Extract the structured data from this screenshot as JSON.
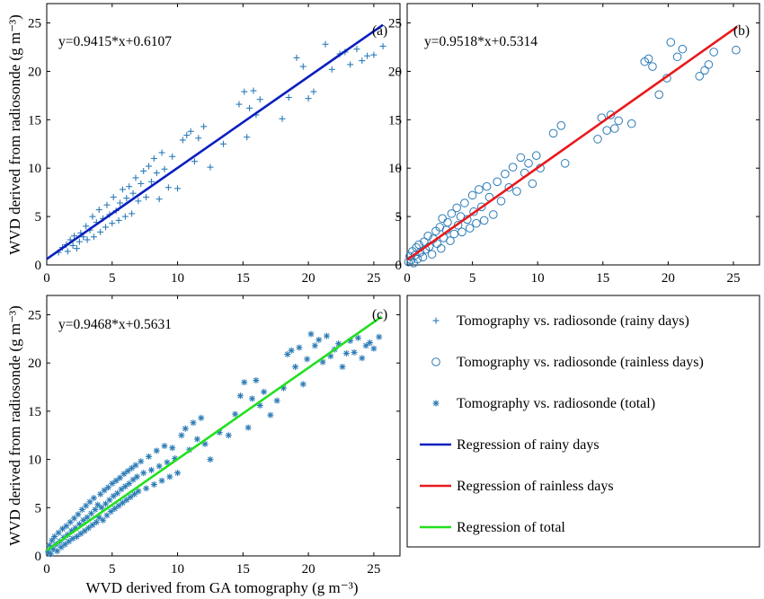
{
  "marker_color": "#2c7bb6",
  "chart_data": [
    {
      "type": "scatter",
      "panel_label": "(a)",
      "equation": "y=0.9415*x+0.6107",
      "ylabel": "WVD derived from radiosonde (g m⁻³)",
      "xlabel": "",
      "xlim": [
        0,
        27
      ],
      "ylim": [
        0,
        27
      ],
      "xticks": [
        0,
        5,
        10,
        15,
        20,
        25
      ],
      "yticks": [
        0,
        5,
        10,
        15,
        20,
        25
      ],
      "marker": "plus",
      "regression": {
        "slope": 0.9415,
        "intercept": 0.6107,
        "x_range": [
          0,
          25.7
        ],
        "color": "#0b1fbf"
      },
      "points": [
        [
          0.9,
          1.3
        ],
        [
          1.2,
          1.8
        ],
        [
          1.5,
          2.1
        ],
        [
          1.6,
          1.4
        ],
        [
          1.8,
          2.6
        ],
        [
          2.0,
          2.0
        ],
        [
          2.1,
          3.0
        ],
        [
          2.3,
          1.7
        ],
        [
          2.5,
          2.4
        ],
        [
          2.6,
          3.3
        ],
        [
          2.8,
          2.9
        ],
        [
          3.0,
          4.0
        ],
        [
          3.1,
          2.6
        ],
        [
          3.3,
          3.6
        ],
        [
          3.5,
          5.0
        ],
        [
          3.6,
          2.9
        ],
        [
          3.8,
          4.4
        ],
        [
          4.0,
          5.7
        ],
        [
          4.1,
          3.4
        ],
        [
          4.3,
          4.8
        ],
        [
          4.5,
          3.9
        ],
        [
          4.6,
          6.2
        ],
        [
          4.8,
          5.2
        ],
        [
          5.0,
          4.3
        ],
        [
          5.1,
          7.0
        ],
        [
          5.3,
          5.6
        ],
        [
          5.5,
          4.6
        ],
        [
          5.6,
          6.4
        ],
        [
          5.8,
          7.8
        ],
        [
          6.0,
          5.0
        ],
        [
          6.1,
          6.9
        ],
        [
          6.3,
          8.1
        ],
        [
          6.5,
          5.3
        ],
        [
          6.6,
          7.4
        ],
        [
          6.8,
          9.0
        ],
        [
          7.0,
          6.6
        ],
        [
          7.2,
          8.4
        ],
        [
          7.4,
          9.7
        ],
        [
          7.6,
          7.0
        ],
        [
          7.8,
          10.2
        ],
        [
          8.0,
          8.6
        ],
        [
          8.2,
          11.0
        ],
        [
          8.4,
          9.5
        ],
        [
          8.6,
          6.8
        ],
        [
          8.8,
          11.6
        ],
        [
          9.0,
          9.9
        ],
        [
          9.3,
          8.0
        ],
        [
          9.6,
          11.2
        ],
        [
          10.0,
          7.9
        ],
        [
          10.4,
          12.9
        ],
        [
          10.7,
          13.4
        ],
        [
          11.0,
          13.8
        ],
        [
          11.3,
          10.7
        ],
        [
          11.6,
          13.1
        ],
        [
          12.0,
          14.3
        ],
        [
          12.5,
          10.1
        ],
        [
          13.5,
          12.5
        ],
        [
          14.7,
          16.6
        ],
        [
          15.1,
          17.9
        ],
        [
          15.3,
          13.2
        ],
        [
          15.5,
          16.2
        ],
        [
          15.8,
          18.0
        ],
        [
          16.0,
          15.5
        ],
        [
          16.3,
          17.1
        ],
        [
          18.0,
          15.1
        ],
        [
          18.5,
          17.3
        ],
        [
          19.1,
          21.4
        ],
        [
          19.6,
          20.5
        ],
        [
          20.0,
          17.2
        ],
        [
          20.4,
          17.9
        ],
        [
          21.3,
          22.8
        ],
        [
          21.8,
          20.2
        ],
        [
          22.4,
          21.8
        ],
        [
          22.8,
          22.0
        ],
        [
          23.2,
          20.7
        ],
        [
          23.7,
          22.3
        ],
        [
          24.1,
          21.1
        ],
        [
          24.5,
          21.6
        ],
        [
          25.0,
          21.7
        ],
        [
          25.7,
          22.6
        ]
      ]
    },
    {
      "type": "scatter",
      "panel_label": "(b)",
      "equation": "y=0.9518*x+0.5314",
      "xlabel": "",
      "ylabel": "",
      "xlim": [
        0,
        27
      ],
      "ylim": [
        0,
        27
      ],
      "xticks": [
        0,
        5,
        10,
        15,
        20,
        25
      ],
      "yticks": [
        0,
        5,
        10,
        15,
        20,
        25
      ],
      "marker": "circle",
      "regression": {
        "slope": 0.9518,
        "intercept": 0.5314,
        "x_range": [
          0,
          25.3
        ],
        "color": "#e8191c"
      },
      "points": [
        [
          0.1,
          0.3
        ],
        [
          0.2,
          0.9
        ],
        [
          0.3,
          0.5
        ],
        [
          0.4,
          1.4
        ],
        [
          0.5,
          0.2
        ],
        [
          0.6,
          1.0
        ],
        [
          0.7,
          1.8
        ],
        [
          0.8,
          0.6
        ],
        [
          0.9,
          2.1
        ],
        [
          1.0,
          1.3
        ],
        [
          1.2,
          0.8
        ],
        [
          1.3,
          2.4
        ],
        [
          1.4,
          1.6
        ],
        [
          1.6,
          3.0
        ],
        [
          1.7,
          1.9
        ],
        [
          1.9,
          1.1
        ],
        [
          2.0,
          2.7
        ],
        [
          2.2,
          3.5
        ],
        [
          2.3,
          2.2
        ],
        [
          2.5,
          3.9
        ],
        [
          2.6,
          1.7
        ],
        [
          2.7,
          4.8
        ],
        [
          2.8,
          2.8
        ],
        [
          3.0,
          3.6
        ],
        [
          3.1,
          4.4
        ],
        [
          3.3,
          2.5
        ],
        [
          3.4,
          5.3
        ],
        [
          3.6,
          3.2
        ],
        [
          3.8,
          5.9
        ],
        [
          3.9,
          4.1
        ],
        [
          4.1,
          5.0
        ],
        [
          4.2,
          3.4
        ],
        [
          4.4,
          6.4
        ],
        [
          4.6,
          4.7
        ],
        [
          4.8,
          3.8
        ],
        [
          5.0,
          7.2
        ],
        [
          5.1,
          5.5
        ],
        [
          5.3,
          4.3
        ],
        [
          5.5,
          7.8
        ],
        [
          5.7,
          6.0
        ],
        [
          5.9,
          4.6
        ],
        [
          6.1,
          8.1
        ],
        [
          6.3,
          7.0
        ],
        [
          6.6,
          5.2
        ],
        [
          6.9,
          8.6
        ],
        [
          7.2,
          6.6
        ],
        [
          7.5,
          9.4
        ],
        [
          7.8,
          8.0
        ],
        [
          8.1,
          10.1
        ],
        [
          8.4,
          7.6
        ],
        [
          8.7,
          11.1
        ],
        [
          9.0,
          9.5
        ],
        [
          9.3,
          10.5
        ],
        [
          9.6,
          8.4
        ],
        [
          9.9,
          11.3
        ],
        [
          10.2,
          10.0
        ],
        [
          11.2,
          13.6
        ],
        [
          11.8,
          14.4
        ],
        [
          12.1,
          10.5
        ],
        [
          14.6,
          13.0
        ],
        [
          14.9,
          15.2
        ],
        [
          15.3,
          13.9
        ],
        [
          15.6,
          15.5
        ],
        [
          15.9,
          14.1
        ],
        [
          16.2,
          14.9
        ],
        [
          17.2,
          14.6
        ],
        [
          18.2,
          21.0
        ],
        [
          18.5,
          21.3
        ],
        [
          18.8,
          20.5
        ],
        [
          19.3,
          17.6
        ],
        [
          19.9,
          19.3
        ],
        [
          20.2,
          23.0
        ],
        [
          20.7,
          21.5
        ],
        [
          21.1,
          22.3
        ],
        [
          22.4,
          19.5
        ],
        [
          22.8,
          20.1
        ],
        [
          23.1,
          20.7
        ],
        [
          23.5,
          22.0
        ],
        [
          25.2,
          22.2
        ]
      ]
    },
    {
      "type": "scatter",
      "panel_label": "(c)",
      "equation": "y=0.9468*x+0.5631",
      "ylabel": "WVD derived from radiosonde (g m⁻³)",
      "xlabel": "WVD derived from GA tomography (g m⁻³)",
      "xlim": [
        0,
        27
      ],
      "ylim": [
        0,
        27
      ],
      "xticks": [
        0,
        5,
        10,
        15,
        20,
        25
      ],
      "yticks": [
        0,
        5,
        10,
        15,
        20,
        25
      ],
      "marker": "asterisk",
      "regression": {
        "slope": 0.9468,
        "intercept": 0.5631,
        "x_range": [
          0,
          25.6
        ],
        "color": "#22e01f"
      },
      "points": [
        [
          0.1,
          0.4
        ],
        [
          0.2,
          1.1
        ],
        [
          0.3,
          0.2
        ],
        [
          0.4,
          1.6
        ],
        [
          0.5,
          0.7
        ],
        [
          0.6,
          2.0
        ],
        [
          0.7,
          1.2
        ],
        [
          0.8,
          0.5
        ],
        [
          0.9,
          2.4
        ],
        [
          1.0,
          1.5
        ],
        [
          1.1,
          0.9
        ],
        [
          1.2,
          2.8
        ],
        [
          1.3,
          1.9
        ],
        [
          1.4,
          1.2
        ],
        [
          1.5,
          3.1
        ],
        [
          1.6,
          2.2
        ],
        [
          1.7,
          1.5
        ],
        [
          1.8,
          3.5
        ],
        [
          1.9,
          2.6
        ],
        [
          2.0,
          1.8
        ],
        [
          2.1,
          3.9
        ],
        [
          2.2,
          2.9
        ],
        [
          2.3,
          2.0
        ],
        [
          2.4,
          4.3
        ],
        [
          2.5,
          3.3
        ],
        [
          2.6,
          2.3
        ],
        [
          2.7,
          4.8
        ],
        [
          2.8,
          3.7
        ],
        [
          2.9,
          2.6
        ],
        [
          3.0,
          5.2
        ],
        [
          3.1,
          4.0
        ],
        [
          3.2,
          2.9
        ],
        [
          3.3,
          5.6
        ],
        [
          3.4,
          4.4
        ],
        [
          3.5,
          3.2
        ],
        [
          3.6,
          6.0
        ],
        [
          3.7,
          4.8
        ],
        [
          3.8,
          3.5
        ],
        [
          3.9,
          5.3
        ],
        [
          4.0,
          4.0
        ],
        [
          4.1,
          6.4
        ],
        [
          4.2,
          5.0
        ],
        [
          4.3,
          3.7
        ],
        [
          4.4,
          6.8
        ],
        [
          4.5,
          5.4
        ],
        [
          4.6,
          4.2
        ],
        [
          4.7,
          7.1
        ],
        [
          4.8,
          5.8
        ],
        [
          4.9,
          4.6
        ],
        [
          5.0,
          7.5
        ],
        [
          5.1,
          6.2
        ],
        [
          5.2,
          4.9
        ],
        [
          5.3,
          7.8
        ],
        [
          5.4,
          6.5
        ],
        [
          5.5,
          5.2
        ],
        [
          5.6,
          8.1
        ],
        [
          5.7,
          6.9
        ],
        [
          5.8,
          5.5
        ],
        [
          5.9,
          8.5
        ],
        [
          6.0,
          7.2
        ],
        [
          6.1,
          5.8
        ],
        [
          6.2,
          8.8
        ],
        [
          6.3,
          7.5
        ],
        [
          6.4,
          6.1
        ],
        [
          6.5,
          9.1
        ],
        [
          6.6,
          7.9
        ],
        [
          6.7,
          6.4
        ],
        [
          6.8,
          9.4
        ],
        [
          6.9,
          8.2
        ],
        [
          7.0,
          6.7
        ],
        [
          7.2,
          9.8
        ],
        [
          7.4,
          8.6
        ],
        [
          7.6,
          7.0
        ],
        [
          7.8,
          10.3
        ],
        [
          8.0,
          8.9
        ],
        [
          8.2,
          7.4
        ],
        [
          8.4,
          10.9
        ],
        [
          8.6,
          9.3
        ],
        [
          8.8,
          7.8
        ],
        [
          9.0,
          11.4
        ],
        [
          9.2,
          9.7
        ],
        [
          9.4,
          8.2
        ],
        [
          9.6,
          11.2
        ],
        [
          9.8,
          10.1
        ],
        [
          10.0,
          8.6
        ],
        [
          10.3,
          12.5
        ],
        [
          10.6,
          13.2
        ],
        [
          10.9,
          11.0
        ],
        [
          11.2,
          13.8
        ],
        [
          11.5,
          12.1
        ],
        [
          11.8,
          14.3
        ],
        [
          12.1,
          11.6
        ],
        [
          12.5,
          10.0
        ],
        [
          13.2,
          12.8
        ],
        [
          13.9,
          12.5
        ],
        [
          14.4,
          14.7
        ],
        [
          14.8,
          16.6
        ],
        [
          15.1,
          18.0
        ],
        [
          15.4,
          13.3
        ],
        [
          15.7,
          16.3
        ],
        [
          16.0,
          18.2
        ],
        [
          16.3,
          15.6
        ],
        [
          16.6,
          17.0
        ],
        [
          17.1,
          14.6
        ],
        [
          17.6,
          16.1
        ],
        [
          18.1,
          17.4
        ],
        [
          18.4,
          20.9
        ],
        [
          18.7,
          21.3
        ],
        [
          19.0,
          19.6
        ],
        [
          19.3,
          21.6
        ],
        [
          19.6,
          17.8
        ],
        [
          19.9,
          20.4
        ],
        [
          20.2,
          23.0
        ],
        [
          20.5,
          21.8
        ],
        [
          20.8,
          22.4
        ],
        [
          21.1,
          20.1
        ],
        [
          21.4,
          22.8
        ],
        [
          21.7,
          20.7
        ],
        [
          22.0,
          21.4
        ],
        [
          22.3,
          22.0
        ],
        [
          22.6,
          19.6
        ],
        [
          22.9,
          21.0
        ],
        [
          23.2,
          22.3
        ],
        [
          23.5,
          21.1
        ],
        [
          23.8,
          22.6
        ],
        [
          24.1,
          20.5
        ],
        [
          24.4,
          21.8
        ],
        [
          24.7,
          22.1
        ],
        [
          25.0,
          21.5
        ],
        [
          25.4,
          22.7
        ]
      ]
    }
  ],
  "legend": {
    "items": [
      {
        "label": "Tomography vs. radiosonde (rainy days)",
        "kind": "plus",
        "color": "#2c7bb6"
      },
      {
        "label": "Tomography vs. radiosonde (rainless days)",
        "kind": "circle",
        "color": "#2c7bb6"
      },
      {
        "label": "Tomography vs. radiosonde (total)",
        "kind": "asterisk",
        "color": "#2c7bb6"
      },
      {
        "label": "Regression of rainy days",
        "kind": "line",
        "color": "#0b1fbf"
      },
      {
        "label": "Regression of rainless days",
        "kind": "line",
        "color": "#e8191c"
      },
      {
        "label": "Regression of total",
        "kind": "line",
        "color": "#22e01f"
      }
    ]
  }
}
